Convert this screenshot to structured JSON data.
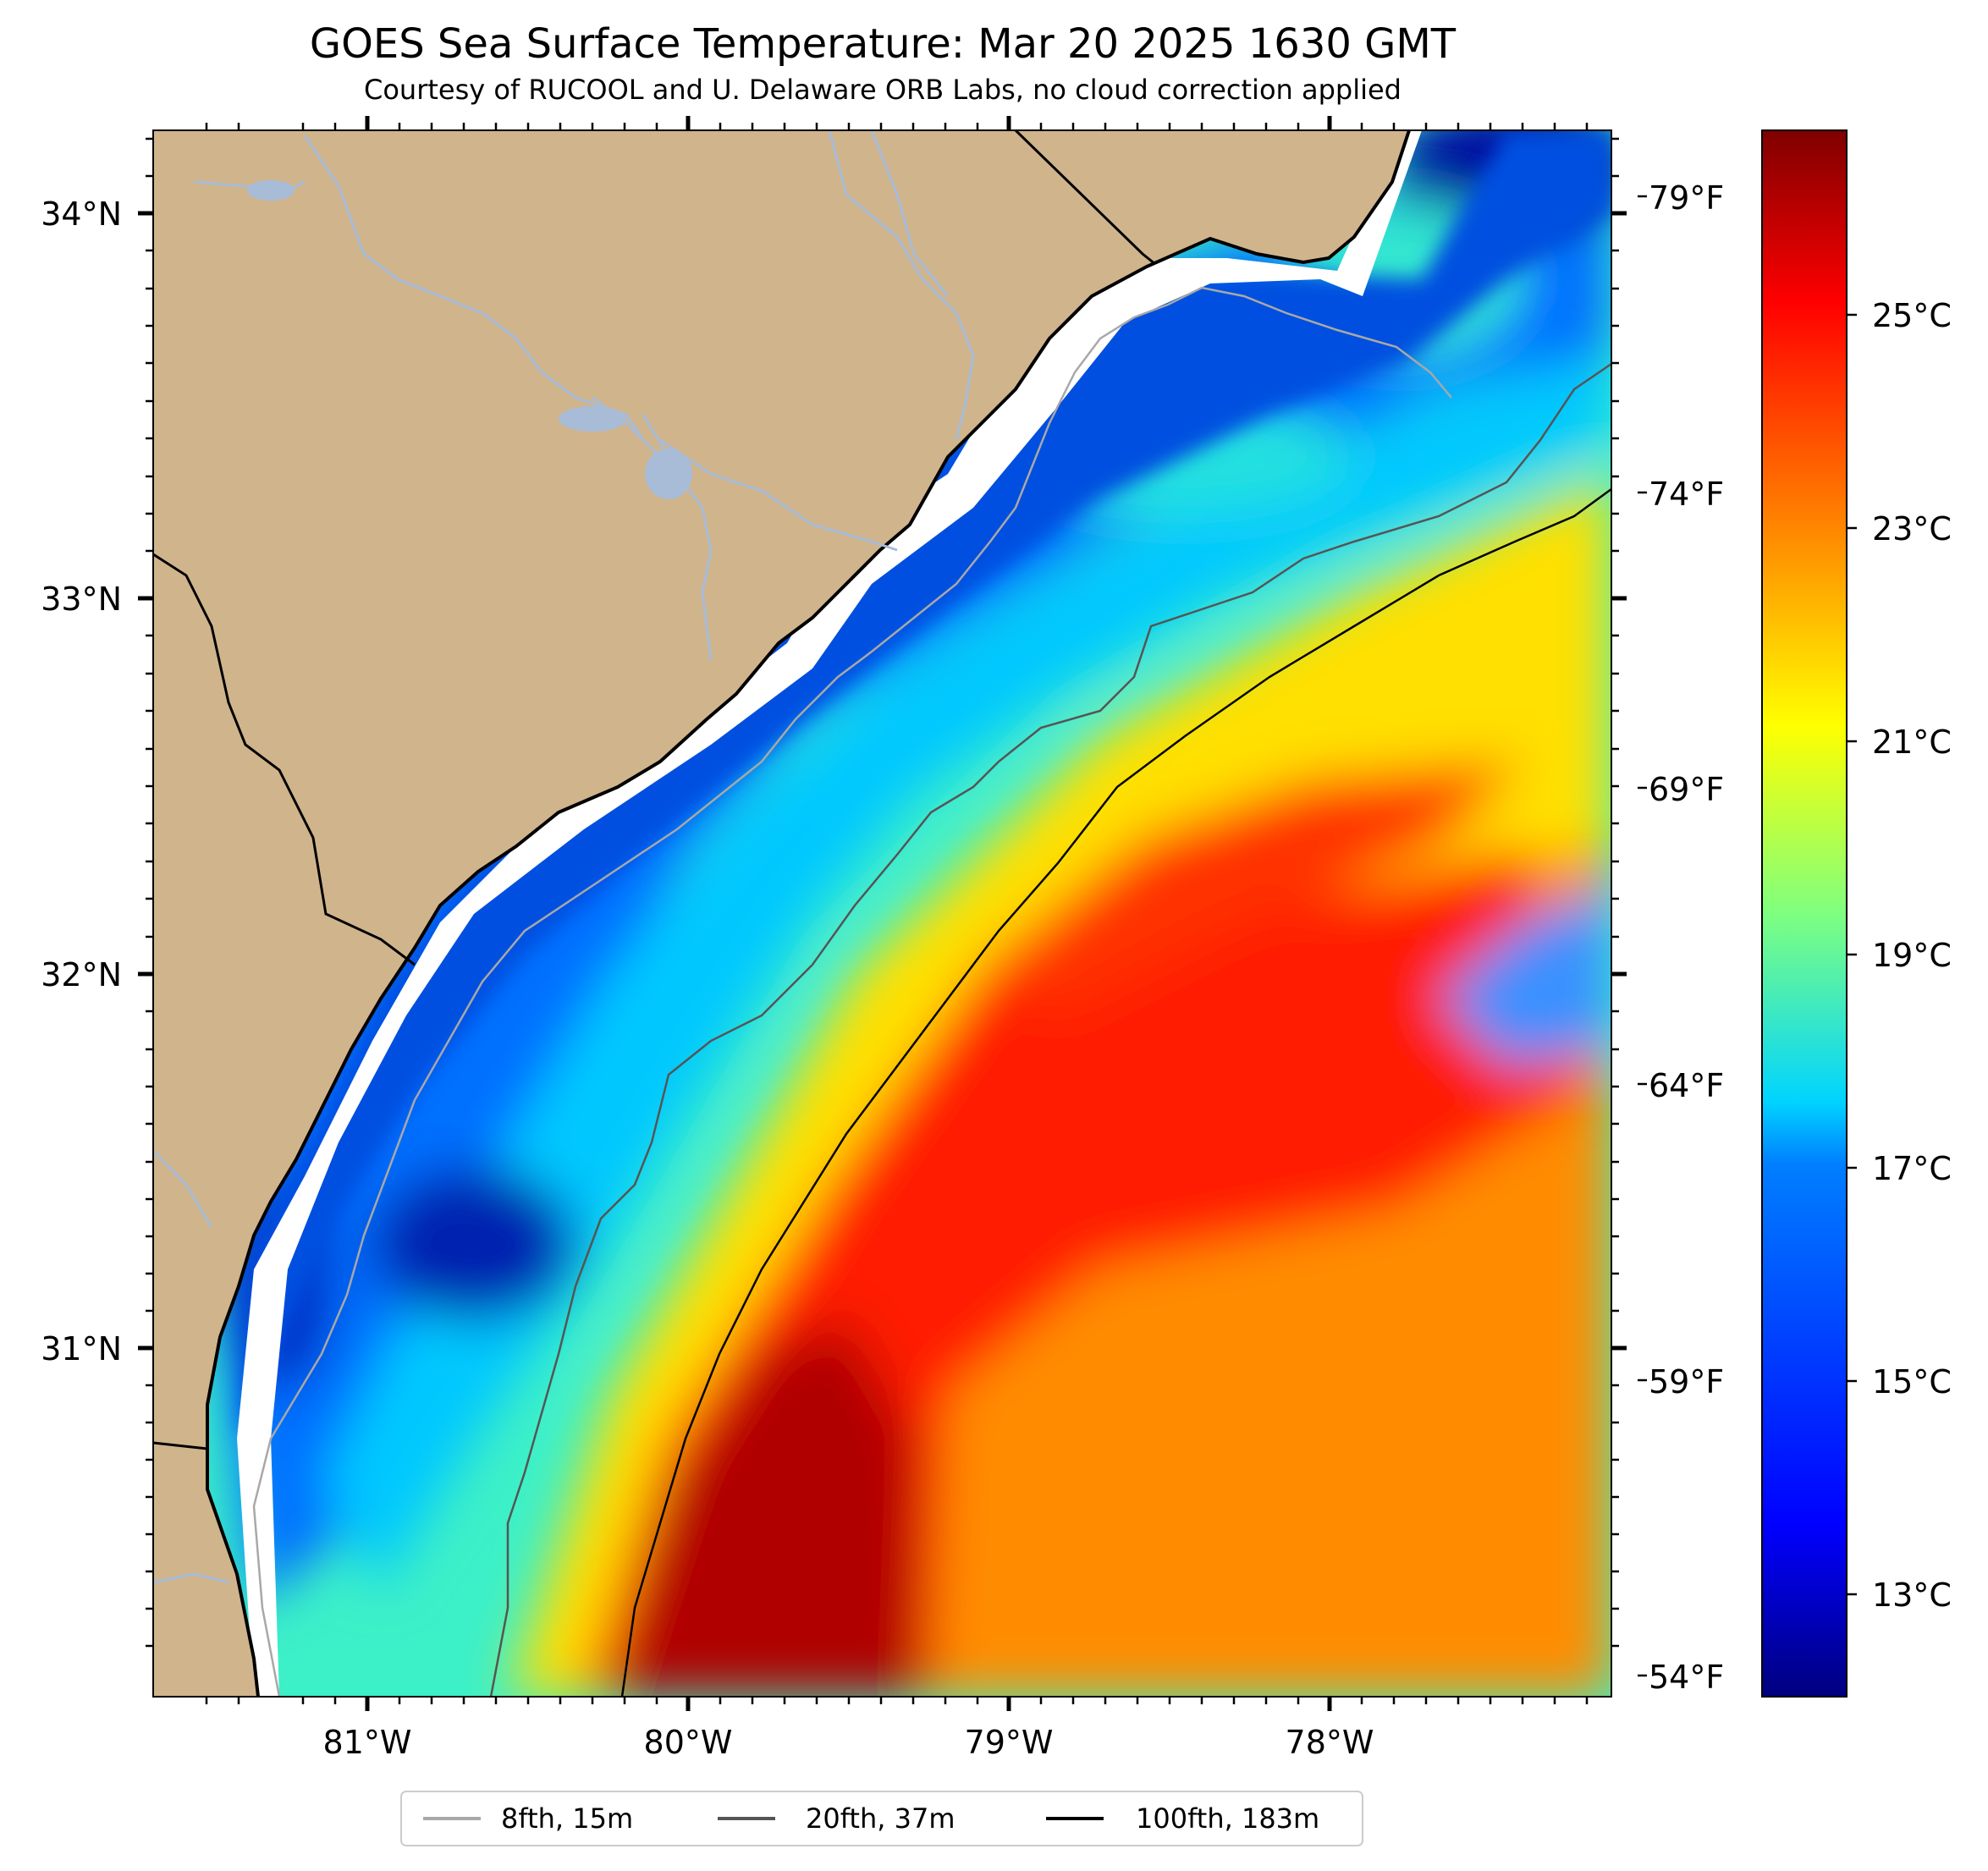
{
  "title": "GOES Sea Surface Temperature: Mar 20 2025 1630 GMT",
  "subtitle": "Courtesy of RUCOOL and U. Delaware ORB Labs, no cloud correction applied",
  "map": {
    "lon_range": [
      -81.67,
      -77.1
    ],
    "lat_range": [
      30.15,
      34.22
    ],
    "lat_ticks": [
      {
        "value": 34,
        "label": "34°N"
      },
      {
        "value": 33,
        "label": "33°N"
      },
      {
        "value": 32,
        "label": "32°N"
      },
      {
        "value": 31,
        "label": "31°N"
      }
    ],
    "lon_ticks": [
      {
        "value": -81,
        "label": "81°W"
      },
      {
        "value": -80,
        "label": "80°W"
      },
      {
        "value": -79,
        "label": "79°W"
      },
      {
        "value": -78,
        "label": "78°W"
      }
    ]
  },
  "fahrenheit_axis": [
    {
      "value": 79,
      "label": "79°F"
    },
    {
      "value": 74,
      "label": "74°F"
    },
    {
      "value": 69,
      "label": "69°F"
    },
    {
      "value": 64,
      "label": "64°F"
    },
    {
      "value": 59,
      "label": "59°F"
    },
    {
      "value": 54,
      "label": "54°F"
    }
  ],
  "colorbar": {
    "range_c": [
      12,
      27
    ],
    "ticks": [
      {
        "value": 25,
        "label": "25°C"
      },
      {
        "value": 23,
        "label": "23°C"
      },
      {
        "value": 21,
        "label": "21°C"
      },
      {
        "value": 19,
        "label": "19°C"
      },
      {
        "value": 17,
        "label": "17°C"
      },
      {
        "value": 15,
        "label": "15°C"
      },
      {
        "value": 13,
        "label": "13°C"
      }
    ],
    "colormap": [
      "#00007f",
      "#0000ff",
      "#007fff",
      "#00ffff",
      "#7fff7f",
      "#ffff00",
      "#ff7f00",
      "#ff0000",
      "#7f0000"
    ]
  },
  "legend": [
    {
      "label": "8fth, 15m",
      "color": "#a8a8a8"
    },
    {
      "label": "20fth, 37m",
      "color": "#555555"
    },
    {
      "label": "100fth, 183m",
      "color": "#000000"
    }
  ],
  "colors": {
    "land": "#d0b48c",
    "river": "#a8bcd8",
    "coastline": "#000000"
  }
}
